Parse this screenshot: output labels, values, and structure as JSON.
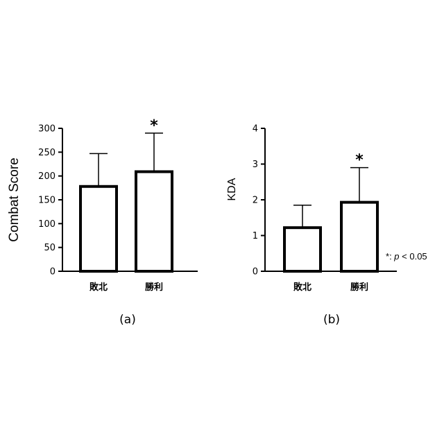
{
  "chart_data": [
    {
      "type": "bar",
      "panel_label": "(a)",
      "ylabel": "Combat Score",
      "ylim": [
        0,
        300
      ],
      "yticks": [
        0,
        50,
        100,
        150,
        200,
        250,
        300
      ],
      "categories": [
        "敗北",
        "勝利"
      ],
      "values": [
        178,
        209
      ],
      "error_upper": [
        247,
        290
      ],
      "significance": [
        "",
        "*"
      ],
      "grid": false
    },
    {
      "type": "bar",
      "panel_label": "(b)",
      "ylabel": "KDA",
      "ylim": [
        0,
        4
      ],
      "yticks": [
        0,
        1,
        2,
        3,
        4
      ],
      "categories": [
        "敗北",
        "勝利"
      ],
      "values": [
        1.22,
        1.93
      ],
      "error_upper": [
        1.85,
        2.9
      ],
      "significance": [
        "",
        "*"
      ],
      "grid": false
    }
  ],
  "note": {
    "star": "*",
    "colon": ": ",
    "p": "p",
    "rest": " < 0.05"
  }
}
